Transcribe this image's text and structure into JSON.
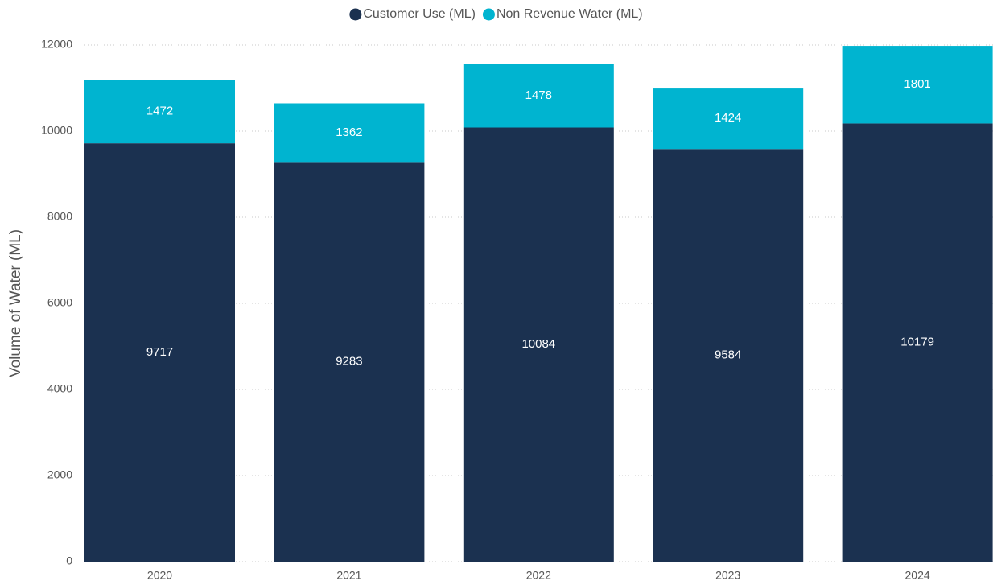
{
  "chart_data": {
    "type": "stacked_bar",
    "y_label": "Volume of Water (ML)",
    "categories": [
      "2020",
      "2021",
      "2022",
      "2023",
      "2024"
    ],
    "series": [
      {
        "name": "Customer Use (ML)",
        "color": "#1b3150",
        "values": [
          9717,
          9283,
          10084,
          9584,
          10179
        ]
      },
      {
        "name": "Non Revenue Water (ML)",
        "color": "#00b4d0",
        "values": [
          1472,
          1362,
          1478,
          1424,
          1801
        ]
      }
    ],
    "ylim": [
      0,
      12000
    ],
    "yticks": [
      0,
      2000,
      4000,
      6000,
      8000,
      10000,
      12000
    ],
    "grid": true,
    "legend": "top"
  }
}
